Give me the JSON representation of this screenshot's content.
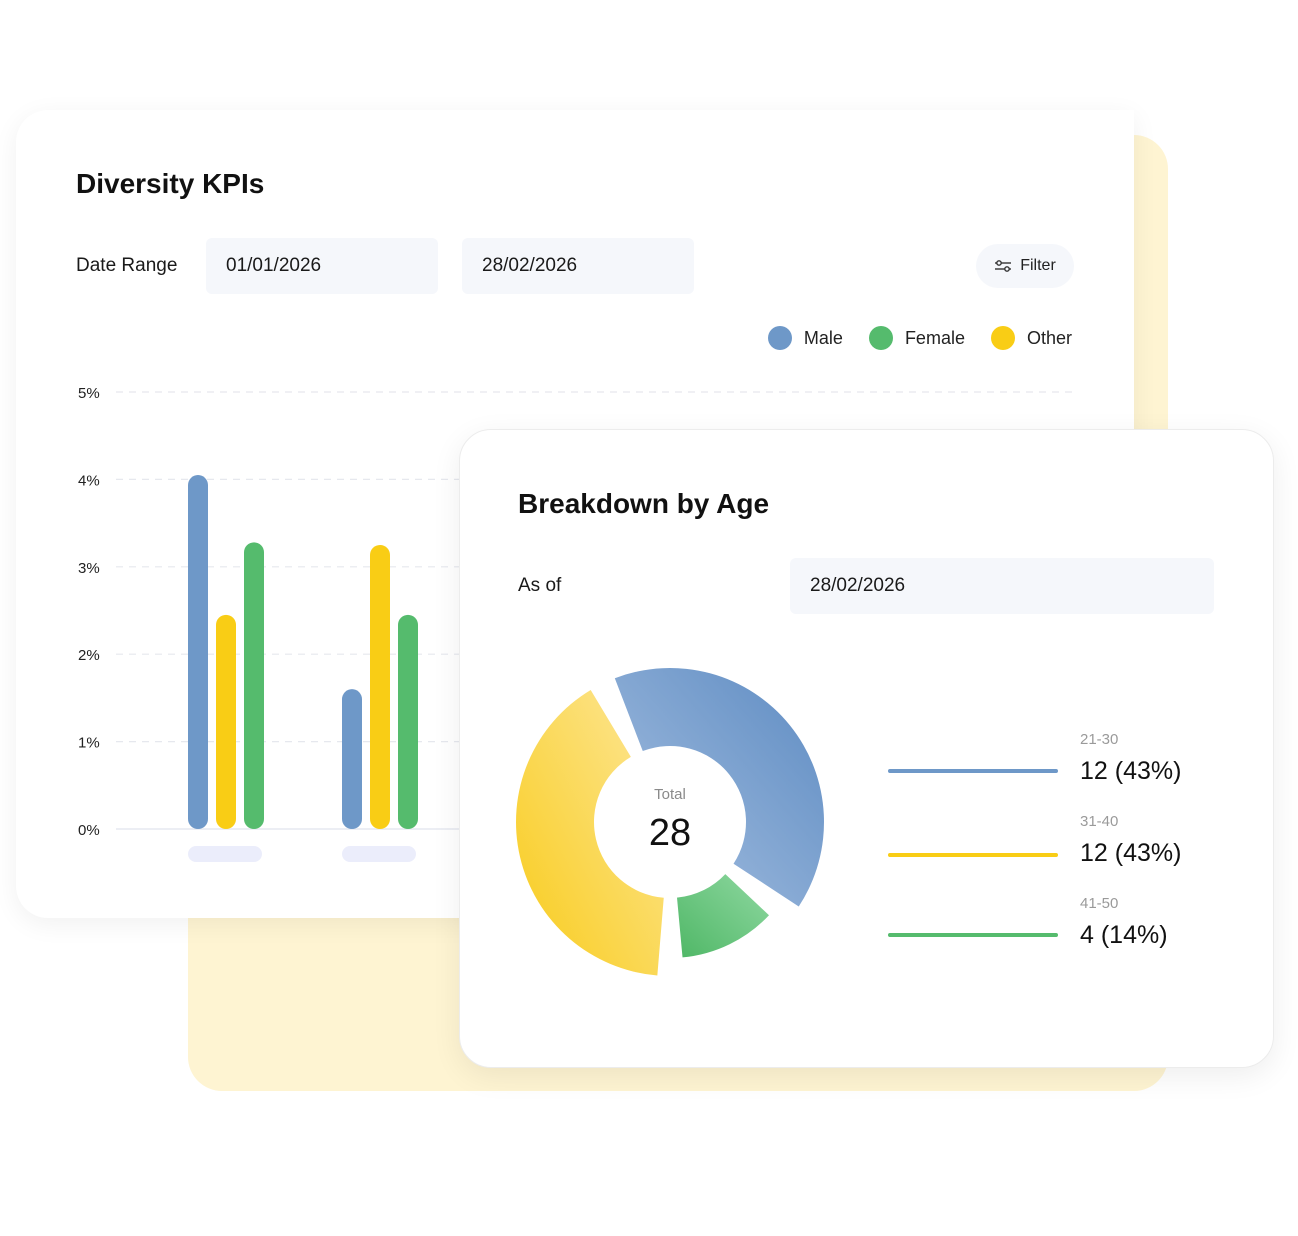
{
  "kpi": {
    "title": "Diversity KPIs",
    "date_range_label": "Date Range",
    "start_date": "01/01/2026",
    "end_date": "28/02/2026",
    "filter_label": "Filter"
  },
  "age": {
    "title": "Breakdown by Age",
    "as_of_label": "As of",
    "as_of_date": "28/02/2026",
    "total_label": "Total",
    "total_value": "28",
    "legend": [
      {
        "range": "21-30",
        "value": "12 (43%)",
        "color": "#6e98c8"
      },
      {
        "range": "31-40",
        "value": "12 (43%)",
        "color": "#f9cd15"
      },
      {
        "range": "41-50",
        "value": "4 (14%)",
        "color": "#55bb6d"
      }
    ]
  },
  "chart_data": [
    {
      "type": "bar",
      "ylim": [
        0,
        5
      ],
      "yticks": [
        "0%",
        "1%",
        "2%",
        "3%",
        "4%",
        "5%"
      ],
      "categories": [
        "",
        ""
      ],
      "series": [
        {
          "name": "Male",
          "color": "#6e98c8",
          "values": [
            4.05,
            1.6
          ]
        },
        {
          "name": "Other",
          "color": "#f9cd15",
          "values": [
            2.45,
            3.25
          ]
        },
        {
          "name": "Female",
          "color": "#55bb6d",
          "values": [
            3.28,
            2.45
          ]
        }
      ],
      "legend": [
        {
          "name": "Male",
          "color": "#6e98c8"
        },
        {
          "name": "Female",
          "color": "#55bb6d"
        },
        {
          "name": "Other",
          "color": "#f9cd15"
        }
      ],
      "grid": true,
      "legend_position": "top-right"
    },
    {
      "type": "pie",
      "variant": "donut",
      "slices": [
        {
          "label": "21-30",
          "value": 12,
          "color": "#6e98c8"
        },
        {
          "label": "41-50",
          "value": 4,
          "color": "#55bb6d"
        },
        {
          "label": "31-40",
          "value": 12,
          "color": "#f9cd15"
        }
      ]
    }
  ]
}
